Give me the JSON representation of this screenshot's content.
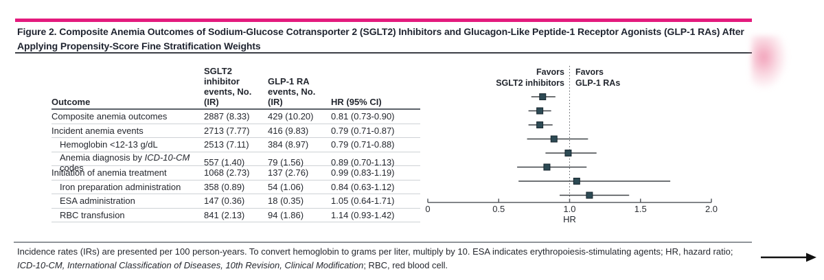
{
  "figure": {
    "accent_color": "#e31a7d",
    "title_lines": [
      "Figure 2. Composite Anemia Outcomes of Sodium-Glucose Cotransporter 2 (SGLT2) Inhibitors and Glucagon-Like Peptide-1 Receptor Agonists (GLP-1 RAs) After",
      "Applying Propensity-Score Fine Stratification Weights"
    ],
    "footnote_line1": "Incidence rates (IRs) are presented per 100 person-years. To convert hemoglobin to grams per liter, multiply by 10. ESA indicates erythropoiesis-stimulating agents; HR, hazard ratio;",
    "footnote_line2": "*ICD-10-CM, International Classification of Diseases, 10th Revision, Clinical Modification*; RBC, red blood cell."
  },
  "table": {
    "headers": {
      "outcome": "Outcome",
      "sglt2": "SGLT2 inhibitor\nevents, No. (IR)",
      "glp1": "GLP-1 RA\nevents, No. (IR)",
      "hr": "HR (95% CI)"
    },
    "rows": [
      {
        "label": "Composite anemia outcomes",
        "indent": false,
        "sglt2": "2887 (8.33)",
        "glp1": "429 (10.20)",
        "hr_ci": "0.81 (0.73-0.90)"
      },
      {
        "label": "Incident anemia events",
        "indent": false,
        "sglt2": "2713 (7.77)",
        "glp1": "416 (9.83)",
        "hr_ci": "0.79 (0.71-0.87)"
      },
      {
        "label": "Hemoglobin <12-13 g/dL",
        "indent": true,
        "sglt2": "2513 (7.11)",
        "glp1": "384 (8.97)",
        "hr_ci": "0.79 (0.71-0.88)"
      },
      {
        "label": "Anemia diagnosis by *ICD-10-CM* codes",
        "indent": true,
        "sglt2": "557 (1.40)",
        "glp1": "79 (1.56)",
        "hr_ci": "0.89 (0.70-1.13)"
      },
      {
        "label": "Initiation of anemia treatment",
        "indent": false,
        "sglt2": "1068 (2.73)",
        "glp1": "137 (2.76)",
        "hr_ci": "0.99 (0.83-1.19)"
      },
      {
        "label": "Iron preparation administration",
        "indent": true,
        "sglt2": "358 (0.89)",
        "glp1": "54 (1.06)",
        "hr_ci": "0.84 (0.63-1.12)"
      },
      {
        "label": "ESA administration",
        "indent": true,
        "sglt2": "147 (0.36)",
        "glp1": "18 (0.35)",
        "hr_ci": "1.05 (0.64-1.71)"
      },
      {
        "label": "RBC transfusion",
        "indent": true,
        "sglt2": "841 (2.13)",
        "glp1": "94 (1.86)",
        "hr_ci": "1.14 (0.93-1.42)"
      }
    ]
  },
  "forest": {
    "favors_left": "Favors\nSGLT2 inhibitors",
    "favors_right": "Favors\nGLP-1 RAs"
  },
  "chart_data": {
    "type": "forest",
    "xlabel": "HR",
    "xlim": [
      0,
      2.0
    ],
    "xticks": [
      "0",
      "0.5",
      "1.0",
      "1.5",
      "2.0"
    ],
    "xtick_values": [
      0,
      0.5,
      1.0,
      1.5,
      2.0
    ],
    "reference_line": 1.0,
    "reference_line_style": "dotted",
    "marker": "square",
    "marker_color": "#2d4a54",
    "marker_edge_color": "#17262e",
    "ci_line_color": "#3e4247",
    "axis_color": "#595d62",
    "rows": [
      {
        "outcome": "Composite anemia outcomes",
        "hr": 0.81,
        "ci_low": 0.73,
        "ci_high": 0.9
      },
      {
        "outcome": "Incident anemia events",
        "hr": 0.79,
        "ci_low": 0.71,
        "ci_high": 0.87
      },
      {
        "outcome": "Hemoglobin <12-13 g/dL",
        "hr": 0.79,
        "ci_low": 0.71,
        "ci_high": 0.88
      },
      {
        "outcome": "Anemia diagnosis by ICD-10-CM codes",
        "hr": 0.89,
        "ci_low": 0.7,
        "ci_high": 1.13
      },
      {
        "outcome": "Initiation of anemia treatment",
        "hr": 0.99,
        "ci_low": 0.83,
        "ci_high": 1.19
      },
      {
        "outcome": "Iron preparation administration",
        "hr": 0.84,
        "ci_low": 0.63,
        "ci_high": 1.12
      },
      {
        "outcome": "ESA administration",
        "hr": 1.05,
        "ci_low": 0.64,
        "ci_high": 1.71
      },
      {
        "outcome": "RBC transfusion",
        "hr": 1.14,
        "ci_low": 0.93,
        "ci_high": 1.42
      }
    ]
  }
}
